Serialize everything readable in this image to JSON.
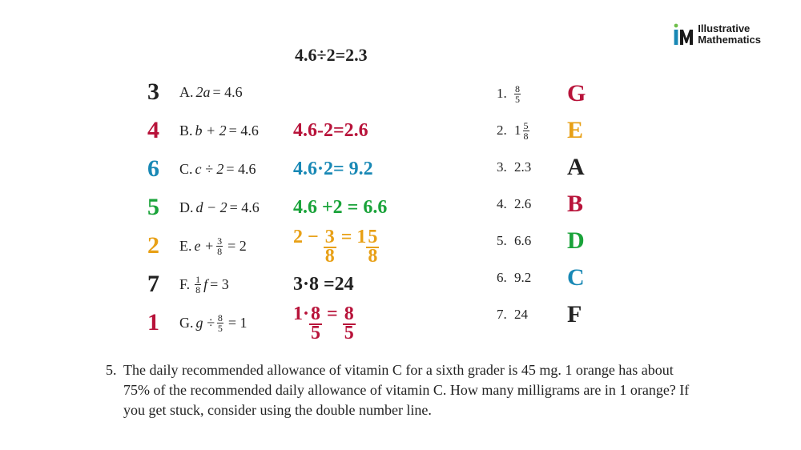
{
  "logo": {
    "line1": "Illustrative",
    "line2": "Mathematics"
  },
  "colors": {
    "black": "#222222",
    "darkred": "#b8133a",
    "green": "#1aa33a",
    "orange": "#e8a016",
    "blue": "#1888b5"
  },
  "top_equation": "4.6÷2=2.3",
  "left_items": [
    {
      "hand_num": "3",
      "num_color": "#222222",
      "label": "A.",
      "eq_var": "2a",
      "eq_rhs": "= 4.6",
      "work": "",
      "work_color": "#222222",
      "frac": null
    },
    {
      "hand_num": "4",
      "num_color": "#b8133a",
      "label": "B.",
      "eq_var": "b + 2",
      "eq_rhs": "= 4.6",
      "work": "4.6-2=2.6",
      "work_color": "#b8133a",
      "frac": null
    },
    {
      "hand_num": "6",
      "num_color": "#1888b5",
      "label": "C.",
      "eq_var": "c ÷ 2",
      "eq_rhs": "= 4.6",
      "work": "4.6·2= 9.2",
      "work_color": "#1888b5",
      "frac": null
    },
    {
      "hand_num": "5",
      "num_color": "#1aa33a",
      "label": "D.",
      "eq_var": "d − 2",
      "eq_rhs": "= 4.6",
      "work": "4.6 +2 = 6.6",
      "work_color": "#1aa33a",
      "frac": null
    },
    {
      "hand_num": "2",
      "num_color": "#e8a016",
      "label": "E.",
      "eq_var_frac": {
        "pre": "e + ",
        "n": "3",
        "d": "8"
      },
      "eq_rhs": "= 2",
      "work_frac": {
        "pre": "2 − ",
        "f1": {
          "n": "3",
          "d": "8"
        },
        "mid": " = 1",
        "f2": {
          "n": "5",
          "d": "8"
        }
      },
      "work_color": "#e8a016"
    },
    {
      "hand_num": "7",
      "num_color": "#222222",
      "label": "F.",
      "eq_var_frac": {
        "pre": "",
        "n": "1",
        "d": "8",
        "post": "f"
      },
      "eq_rhs": "= 3",
      "work": "3·8 =24",
      "work_color": "#222222"
    },
    {
      "hand_num": "1",
      "num_color": "#b8133a",
      "label": "G.",
      "eq_var_frac": {
        "pre": "g ÷ ",
        "n": "8",
        "d": "5"
      },
      "eq_rhs": "= 1",
      "work_frac": {
        "pre": "1·",
        "f1": {
          "n": "8",
          "d": "5"
        },
        "mid": " = ",
        "f2": {
          "n": "8",
          "d": "5"
        }
      },
      "work_color": "#b8133a"
    }
  ],
  "right_items": [
    {
      "num": "1.",
      "val_frac": {
        "n": "8",
        "d": "5"
      },
      "letter": "G",
      "color": "#b8133a"
    },
    {
      "num": "2.",
      "val_mixed": {
        "w": "1",
        "n": "5",
        "d": "8"
      },
      "letter": "E",
      "color": "#e8a016"
    },
    {
      "num": "3.",
      "val": "2.3",
      "letter": "A",
      "color": "#222222"
    },
    {
      "num": "4.",
      "val": "2.6",
      "letter": "B",
      "color": "#b8133a"
    },
    {
      "num": "5.",
      "val": "6.6",
      "letter": "D",
      "color": "#1aa33a"
    },
    {
      "num": "6.",
      "val": "9.2",
      "letter": "C",
      "color": "#1888b5"
    },
    {
      "num": "7.",
      "val": "24",
      "letter": "F",
      "color": "#222222"
    }
  ],
  "question": {
    "num": "5.",
    "text": "The daily recommended allowance of vitamin C for a sixth grader is 45 mg. 1 orange has about 75% of the recommended daily allowance of vitamin C. How many milligrams are in 1 orange? If you get stuck, consider using the double number line."
  }
}
